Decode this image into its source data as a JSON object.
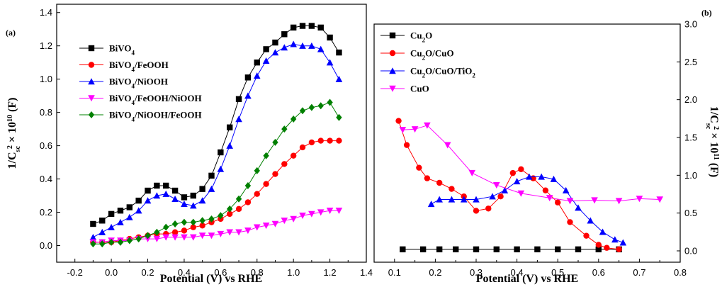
{
  "chart_data": [
    {
      "panel_label": "(a)",
      "type": "line",
      "xlabel": "Potential (V) vs RHE",
      "ylabel_main": "1/C",
      "ylabel_sub": "sc",
      "ylabel_sup": "2",
      "ylabel_rest": " × 10",
      "ylabel_exp": "10",
      "ylabel_unit": " (F)",
      "xlim": [
        -0.3,
        1.4
      ],
      "ylim": [
        -0.1,
        1.45
      ],
      "xticks": [
        "-0.2",
        "0.0",
        "0.2",
        "0.4",
        "0.6",
        "0.8",
        "1.0",
        "1.2",
        "1.4"
      ],
      "xtick_values": [
        -0.2,
        0.0,
        0.2,
        0.4,
        0.6,
        0.8,
        1.0,
        1.2,
        1.4
      ],
      "yticks": [
        "0.0",
        "0.2",
        "0.4",
        "0.6",
        "0.8",
        "1.0",
        "1.2",
        "1.4"
      ],
      "ytick_values": [
        0.0,
        0.2,
        0.4,
        0.6,
        0.8,
        1.0,
        1.2,
        1.4
      ],
      "legend_position": "top-left",
      "series": [
        {
          "name": "BiVO4",
          "name_base": "BiVO",
          "name_sub1": "4",
          "name_rest": "",
          "color": "#000000",
          "marker": "square",
          "x": [
            -0.1,
            -0.05,
            0.0,
            0.05,
            0.1,
            0.15,
            0.2,
            0.25,
            0.3,
            0.35,
            0.4,
            0.45,
            0.5,
            0.55,
            0.6,
            0.65,
            0.7,
            0.75,
            0.8,
            0.85,
            0.9,
            0.95,
            1.0,
            1.05,
            1.1,
            1.15,
            1.2,
            1.25
          ],
          "y": [
            0.13,
            0.15,
            0.19,
            0.21,
            0.23,
            0.27,
            0.33,
            0.36,
            0.36,
            0.33,
            0.29,
            0.3,
            0.34,
            0.42,
            0.56,
            0.71,
            0.88,
            1.01,
            1.1,
            1.18,
            1.22,
            1.27,
            1.31,
            1.32,
            1.32,
            1.31,
            1.25,
            1.16
          ]
        },
        {
          "name": "BiVO4/FeOOH",
          "name_base": "BiVO",
          "name_sub1": "4",
          "name_rest": "/FeOOH",
          "color": "#ff0000",
          "marker": "circle",
          "x": [
            -0.1,
            -0.05,
            0.0,
            0.05,
            0.1,
            0.15,
            0.2,
            0.25,
            0.3,
            0.35,
            0.4,
            0.45,
            0.5,
            0.55,
            0.6,
            0.65,
            0.7,
            0.75,
            0.8,
            0.85,
            0.9,
            0.95,
            1.0,
            1.05,
            1.1,
            1.15,
            1.2,
            1.25
          ],
          "y": [
            0.02,
            0.02,
            0.02,
            0.03,
            0.04,
            0.05,
            0.06,
            0.07,
            0.07,
            0.08,
            0.09,
            0.11,
            0.12,
            0.14,
            0.16,
            0.19,
            0.22,
            0.26,
            0.31,
            0.37,
            0.43,
            0.49,
            0.54,
            0.59,
            0.62,
            0.63,
            0.63,
            0.63
          ]
        },
        {
          "name": "BiVO4/NiOOH",
          "name_base": "BiVO",
          "name_sub1": "4",
          "name_rest": "/NiOOH",
          "color": "#0000ff",
          "marker": "triangle-up",
          "x": [
            -0.1,
            -0.05,
            0.0,
            0.05,
            0.1,
            0.15,
            0.2,
            0.25,
            0.3,
            0.35,
            0.4,
            0.45,
            0.5,
            0.55,
            0.6,
            0.65,
            0.7,
            0.75,
            0.8,
            0.85,
            0.9,
            0.95,
            1.0,
            1.05,
            1.1,
            1.15,
            1.2,
            1.25
          ],
          "y": [
            0.05,
            0.08,
            0.11,
            0.14,
            0.17,
            0.21,
            0.27,
            0.3,
            0.31,
            0.28,
            0.25,
            0.24,
            0.27,
            0.34,
            0.46,
            0.6,
            0.76,
            0.9,
            1.02,
            1.11,
            1.16,
            1.19,
            1.21,
            1.2,
            1.2,
            1.18,
            1.1,
            1.0
          ]
        },
        {
          "name": "BiVO4/FeOOH/NiOOH",
          "name_base": "BiVO",
          "name_sub1": "4",
          "name_rest": "/FeOOH/NiOOH",
          "color": "#ff00ff",
          "marker": "triangle-down",
          "x": [
            -0.1,
            -0.05,
            0.0,
            0.05,
            0.1,
            0.15,
            0.2,
            0.25,
            0.3,
            0.35,
            0.4,
            0.45,
            0.5,
            0.55,
            0.6,
            0.65,
            0.7,
            0.75,
            0.8,
            0.85,
            0.9,
            0.95,
            1.0,
            1.05,
            1.1,
            1.15,
            1.2,
            1.25
          ],
          "y": [
            0.02,
            0.02,
            0.03,
            0.03,
            0.03,
            0.04,
            0.04,
            0.04,
            0.05,
            0.05,
            0.05,
            0.05,
            0.06,
            0.06,
            0.07,
            0.08,
            0.08,
            0.09,
            0.11,
            0.12,
            0.13,
            0.15,
            0.16,
            0.18,
            0.19,
            0.2,
            0.21,
            0.21
          ]
        },
        {
          "name": "BiVO4/NiOOH/FeOOH",
          "name_base": "BiVO",
          "name_sub1": "4",
          "name_rest": "/NiOOH/FeOOH",
          "color": "#008000",
          "marker": "diamond",
          "x": [
            -0.1,
            -0.05,
            0.0,
            0.05,
            0.1,
            0.15,
            0.2,
            0.25,
            0.3,
            0.35,
            0.4,
            0.45,
            0.5,
            0.55,
            0.6,
            0.65,
            0.7,
            0.75,
            0.8,
            0.85,
            0.9,
            0.95,
            1.0,
            1.05,
            1.1,
            1.15,
            1.2,
            1.25
          ],
          "y": [
            0.01,
            0.01,
            0.02,
            0.02,
            0.03,
            0.04,
            0.06,
            0.08,
            0.11,
            0.13,
            0.14,
            0.14,
            0.15,
            0.16,
            0.18,
            0.22,
            0.28,
            0.36,
            0.45,
            0.54,
            0.62,
            0.7,
            0.76,
            0.81,
            0.83,
            0.84,
            0.86,
            0.77
          ]
        }
      ]
    },
    {
      "panel_label": "(b)",
      "type": "line",
      "xlabel": "Potential (V) vs RHE",
      "ylabel_main": "1/C",
      "ylabel_sub": "sc",
      "ylabel_sup": "2",
      "ylabel_rest": " × 10",
      "ylabel_exp": "11",
      "ylabel_unit": " (F)",
      "xlim": [
        0.05,
        0.8
      ],
      "ylim": [
        -0.15,
        3.0
      ],
      "xticks": [
        "0.1",
        "0.2",
        "0.3",
        "0.4",
        "0.5",
        "0.6",
        "0.7",
        "0.8"
      ],
      "xtick_values": [
        0.1,
        0.2,
        0.3,
        0.4,
        0.5,
        0.6,
        0.7,
        0.8
      ],
      "yticks": [
        "0.0",
        "0.5",
        "1.0",
        "1.5",
        "2.0",
        "2.5",
        "3.0"
      ],
      "ytick_values": [
        0.0,
        0.5,
        1.0,
        1.5,
        2.0,
        2.5,
        3.0
      ],
      "legend_position": "top-left",
      "series": [
        {
          "name": "Cu2O",
          "name_base": "Cu",
          "name_sub1": "2",
          "name_rest": "O",
          "color": "#000000",
          "marker": "square",
          "x": [
            0.12,
            0.17,
            0.21,
            0.25,
            0.3,
            0.35,
            0.4,
            0.45,
            0.5,
            0.55,
            0.6,
            0.65
          ],
          "y": [
            0.02,
            0.02,
            0.02,
            0.02,
            0.02,
            0.02,
            0.02,
            0.02,
            0.02,
            0.02,
            0.02,
            0.02
          ]
        },
        {
          "name": "Cu2O/CuO",
          "name_base": "Cu",
          "name_sub1": "2",
          "name_rest": "O/CuO",
          "color": "#ff0000",
          "marker": "circle",
          "x": [
            0.11,
            0.13,
            0.16,
            0.18,
            0.21,
            0.24,
            0.27,
            0.3,
            0.33,
            0.36,
            0.39,
            0.41,
            0.44,
            0.47,
            0.5,
            0.53,
            0.57,
            0.6,
            0.62,
            0.65
          ],
          "y": [
            1.72,
            1.4,
            1.1,
            0.96,
            0.9,
            0.82,
            0.72,
            0.53,
            0.56,
            0.72,
            1.03,
            1.08,
            0.96,
            0.8,
            0.64,
            0.38,
            0.2,
            0.08,
            0.04,
            0.02
          ]
        },
        {
          "name": "Cu2O/CuO/TiO2",
          "name_base": "Cu",
          "name_sub1": "2",
          "name_rest": "O/CuO/TiO",
          "name_sub2": "2",
          "color": "#0000ff",
          "marker": "triangle-up",
          "x": [
            0.19,
            0.21,
            0.24,
            0.27,
            0.3,
            0.34,
            0.37,
            0.4,
            0.43,
            0.46,
            0.49,
            0.52,
            0.55,
            0.58,
            0.61,
            0.64,
            0.66
          ],
          "y": [
            0.62,
            0.68,
            0.68,
            0.68,
            0.68,
            0.72,
            0.8,
            0.92,
            0.98,
            0.98,
            0.95,
            0.8,
            0.57,
            0.4,
            0.25,
            0.15,
            0.11
          ]
        },
        {
          "name": "CuO",
          "name_base": "CuO",
          "name_sub1": "",
          "name_rest": "",
          "color": "#ff00ff",
          "marker": "triangle-down",
          "x": [
            0.12,
            0.15,
            0.18,
            0.23,
            0.29,
            0.35,
            0.41,
            0.48,
            0.53,
            0.59,
            0.65,
            0.7,
            0.75
          ],
          "y": [
            1.6,
            1.61,
            1.66,
            1.4,
            1.03,
            0.87,
            0.76,
            0.7,
            0.66,
            0.67,
            0.66,
            0.69,
            0.68
          ]
        }
      ]
    }
  ]
}
